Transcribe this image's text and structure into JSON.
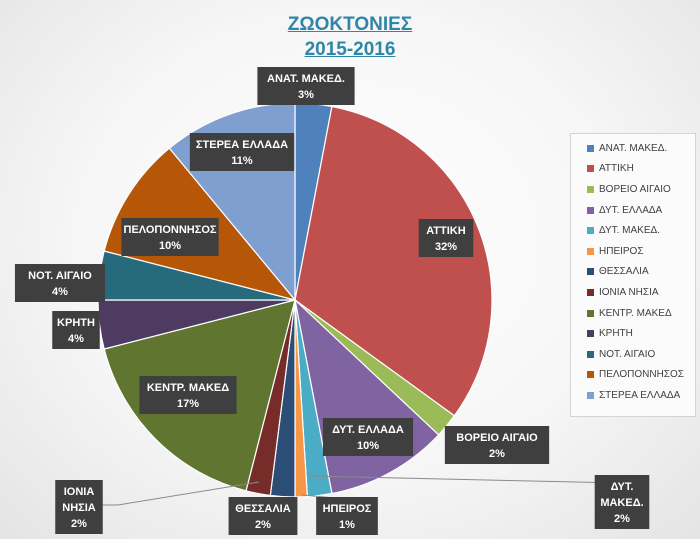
{
  "chart_data": {
    "type": "pie",
    "title": [
      "ΖΩΟΚΤΟΝΙΕΣ",
      "2015-2016"
    ],
    "legend_position": "right",
    "slices": [
      {
        "name": "ΑΝΑΤ. ΜΑΚΕΔ.",
        "label": [
          "ΑΝΑΤ. ΜΑΚΕΔ."
        ],
        "value": 3,
        "value_label": "3%",
        "color": "#4f81bd"
      },
      {
        "name": "ΑΤΤΙΚΗ",
        "label": [
          "ΑΤΤΙΚΗ"
        ],
        "value": 32,
        "value_label": "32%",
        "color": "#c0504d"
      },
      {
        "name": "ΒΟΡΕΙΟ ΑΙΓΑΙΟ",
        "label": [
          "ΒΟΡΕΙΟ ΑΙΓΑΙΟ"
        ],
        "value": 2,
        "value_label": "2%",
        "color": "#9bbb59"
      },
      {
        "name": "ΔΥΤ. ΕΛΛΑΔΑ",
        "label": [
          "ΔΥΤ. ΕΛΛΑΔΑ"
        ],
        "value": 10,
        "value_label": "10%",
        "color": "#8064a2"
      },
      {
        "name": "ΔΥΤ. ΜΑΚΕΔ.",
        "label": [
          "ΔΥΤ.",
          "ΜΑΚΕΔ."
        ],
        "value": 2,
        "value_label": "2%",
        "color": "#4bacc6"
      },
      {
        "name": "ΗΠΕΙΡΟΣ",
        "label": [
          "ΗΠΕΙΡΟΣ"
        ],
        "value": 1,
        "value_label": "1%",
        "color": "#f79646"
      },
      {
        "name": "ΘΕΣΣΑΛΙΑ",
        "label": [
          "ΘΕΣΣΑΛΙΑ"
        ],
        "value": 2,
        "value_label": "2%",
        "color": "#2c4d75"
      },
      {
        "name": "ΙΟΝΙΑ ΝΗΣΙΑ",
        "label": [
          "ΙΟΝΙΑ",
          "ΝΗΣΙΑ"
        ],
        "value": 2,
        "value_label": "2%",
        "color": "#772c2a"
      },
      {
        "name": "ΚΕΝΤΡ. ΜΑΚΕΔ",
        "label": [
          "ΚΕΝΤΡ. ΜΑΚΕΔ"
        ],
        "value": 17,
        "value_label": "17%",
        "color": "#5f7530"
      },
      {
        "name": "ΚΡΗΤΗ",
        "label": [
          "ΚΡΗΤΗ"
        ],
        "value": 4,
        "value_label": "4%",
        "color": "#4d3b62"
      },
      {
        "name": "ΝΟΤ. ΑΙΓΑΙΟ",
        "label": [
          "ΝΟΤ. ΑΙΓΑΙΟ"
        ],
        "value": 4,
        "value_label": "4%",
        "color": "#276a7c"
      },
      {
        "name": "ΠΕΛΟΠΟΝΝΗΣΟΣ",
        "label": [
          "ΠΕΛΟΠΟΝΝΗΣΟΣ"
        ],
        "value": 10,
        "value_label": "10%",
        "color": "#b65708"
      },
      {
        "name": "ΣΤΕΡΕΑ ΕΛΛΑΔΑ",
        "label": [
          "ΣΤΕΡΕΑ ΕΛΛΑΔΑ"
        ],
        "value": 11,
        "value_label": "11%",
        "color": "#7f9fd0"
      }
    ]
  }
}
